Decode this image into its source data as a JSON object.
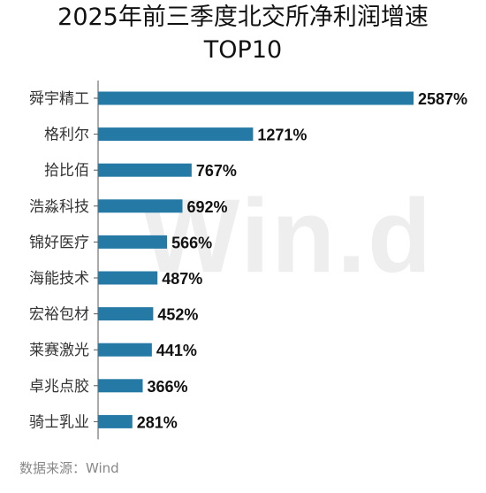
{
  "title_line1": "2025年前三季度北交所净利润增速",
  "title_line2": "TOP10",
  "watermark": "Win.d",
  "source": "数据来源：Wind",
  "colors": {
    "bar": "#2479a5",
    "axis": "#555555"
  },
  "chart_data": {
    "type": "bar",
    "orientation": "horizontal",
    "categories": [
      "舜宇精工",
      "格利尔",
      "拾比佰",
      "浩淼科技",
      "锦好医疗",
      "海能技术",
      "宏裕包材",
      "莱赛激光",
      "卓兆点胶",
      "骑士乳业"
    ],
    "values": [
      2587,
      1271,
      767,
      692,
      566,
      487,
      452,
      441,
      366,
      281
    ],
    "value_labels": [
      "2587%",
      "1271%",
      "767%",
      "692%",
      "566%",
      "487%",
      "452%",
      "441%",
      "366%",
      "281%"
    ],
    "unit": "%",
    "xlim": [
      0,
      2587
    ],
    "grid": false,
    "legend": "none"
  }
}
